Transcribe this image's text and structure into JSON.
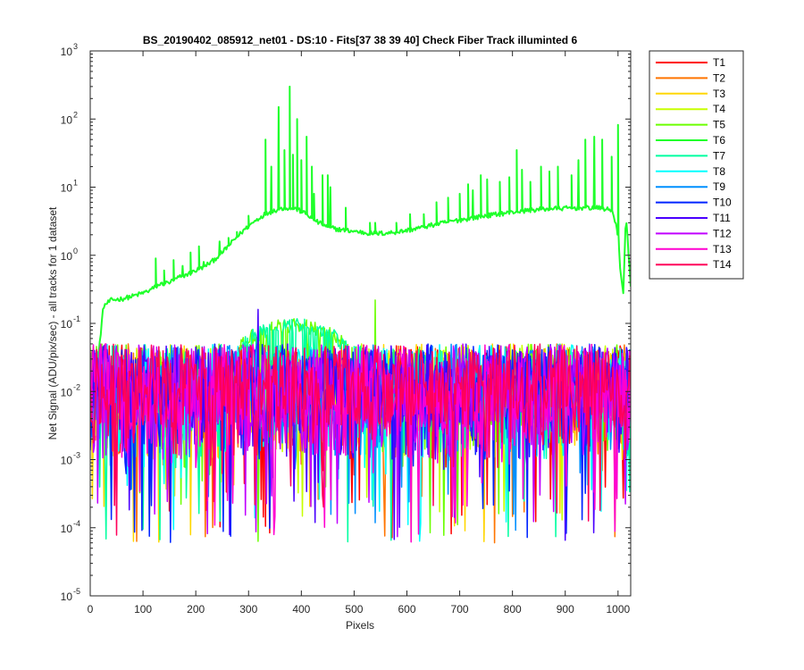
{
  "chart_data": {
    "type": "line",
    "title": "BS_20190402_085912_net01 - DS:10 - Fits[37  38  39  40]   Check Fiber     Track illuminted 6",
    "xlabel": "Pixels",
    "ylabel": "Net Signal (ADU/pix/sec) - all tracks for 1 dataset",
    "xlim": [
      0,
      1024
    ],
    "ylim": [
      1e-05,
      1000
    ],
    "yscale": "log",
    "grid": false,
    "legend_position": "outside-top-right",
    "x_ticks": [
      0,
      100,
      200,
      300,
      400,
      500,
      600,
      700,
      800,
      900,
      1000
    ],
    "y_ticks": [
      {
        "value": 1e-05,
        "base": "10",
        "exp": "-5"
      },
      {
        "value": 0.0001,
        "base": "10",
        "exp": "-4"
      },
      {
        "value": 0.001,
        "base": "10",
        "exp": "-3"
      },
      {
        "value": 0.01,
        "base": "10",
        "exp": "-2"
      },
      {
        "value": 0.1,
        "base": "10",
        "exp": "-1"
      },
      {
        "value": 1,
        "base": "10",
        "exp": "0"
      },
      {
        "value": 10,
        "base": "10",
        "exp": "1"
      },
      {
        "value": 100,
        "base": "10",
        "exp": "2"
      },
      {
        "value": 1000,
        "base": "10",
        "exp": "3"
      }
    ],
    "illuminated_track": {
      "name": "T6",
      "baseline": [
        [
          0,
          0.022
        ],
        [
          15,
          0.03
        ],
        [
          25,
          0.18
        ],
        [
          40,
          0.22
        ],
        [
          60,
          0.23
        ],
        [
          80,
          0.25
        ],
        [
          100,
          0.28
        ],
        [
          110,
          0.3
        ],
        [
          120,
          0.33
        ],
        [
          130,
          0.37
        ],
        [
          150,
          0.4
        ],
        [
          170,
          0.48
        ],
        [
          190,
          0.55
        ],
        [
          210,
          0.65
        ],
        [
          230,
          0.8
        ],
        [
          250,
          1.1
        ],
        [
          270,
          1.6
        ],
        [
          290,
          2.3
        ],
        [
          310,
          3.1
        ],
        [
          330,
          4.0
        ],
        [
          350,
          4.6
        ],
        [
          370,
          5.0
        ],
        [
          390,
          4.8
        ],
        [
          410,
          4.0
        ],
        [
          430,
          3.1
        ],
        [
          450,
          2.6
        ],
        [
          470,
          2.4
        ],
        [
          490,
          2.3
        ],
        [
          510,
          2.2
        ],
        [
          530,
          2.1
        ],
        [
          550,
          2.1
        ],
        [
          570,
          2.15
        ],
        [
          590,
          2.25
        ],
        [
          610,
          2.4
        ],
        [
          630,
          2.6
        ],
        [
          650,
          2.8
        ],
        [
          670,
          3.0
        ],
        [
          690,
          3.2
        ],
        [
          710,
          3.4
        ],
        [
          730,
          3.6
        ],
        [
          750,
          3.8
        ],
        [
          770,
          4.0
        ],
        [
          790,
          4.2
        ],
        [
          810,
          4.4
        ],
        [
          830,
          4.6
        ],
        [
          850,
          4.7
        ],
        [
          870,
          4.8
        ],
        [
          890,
          4.9
        ],
        [
          910,
          4.9
        ],
        [
          930,
          5.0
        ],
        [
          950,
          5.0
        ],
        [
          970,
          4.9
        ],
        [
          990,
          4.5
        ],
        [
          1000,
          2.0
        ],
        [
          1005,
          0.5
        ],
        [
          1010,
          0.3
        ],
        [
          1015,
          4.0
        ],
        [
          1024,
          0.35
        ]
      ],
      "peaks": [
        [
          124,
          0.9
        ],
        [
          140,
          0.6
        ],
        [
          158,
          0.85
        ],
        [
          175,
          0.7
        ],
        [
          190,
          1.1
        ],
        [
          206,
          1.35
        ],
        [
          215,
          0.8
        ],
        [
          245,
          1.6
        ],
        [
          262,
          1.8
        ],
        [
          278,
          2.2
        ],
        [
          300,
          3.8
        ],
        [
          332,
          50
        ],
        [
          343,
          20
        ],
        [
          357,
          150
        ],
        [
          368,
          35
        ],
        [
          378,
          300
        ],
        [
          384,
          30
        ],
        [
          392,
          100
        ],
        [
          400,
          25
        ],
        [
          410,
          55
        ],
        [
          420,
          20
        ],
        [
          424,
          8
        ],
        [
          440,
          15
        ],
        [
          450,
          15
        ],
        [
          455,
          10
        ],
        [
          484,
          5
        ],
        [
          530,
          3
        ],
        [
          540,
          3
        ],
        [
          580,
          3
        ],
        [
          606,
          4
        ],
        [
          632,
          4
        ],
        [
          656,
          6
        ],
        [
          678,
          7
        ],
        [
          700,
          8
        ],
        [
          716,
          11
        ],
        [
          725,
          9
        ],
        [
          740,
          15
        ],
        [
          752,
          13
        ],
        [
          776,
          12
        ],
        [
          794,
          14
        ],
        [
          808,
          35
        ],
        [
          818,
          18
        ],
        [
          834,
          12
        ],
        [
          854,
          20
        ],
        [
          870,
          17
        ],
        [
          886,
          20
        ],
        [
          912,
          15
        ],
        [
          925,
          25
        ],
        [
          938,
          50
        ],
        [
          955,
          55
        ],
        [
          970,
          50
        ],
        [
          988,
          28
        ],
        [
          1000,
          82
        ]
      ],
      "noise_wiggle": 0.08
    },
    "noise_tracks": {
      "typical_range": [
        0.003,
        0.05
      ],
      "deep_dips_range": [
        6e-05,
        0.001
      ],
      "bump": {
        "x_range": [
          280,
          490
        ],
        "peak": 0.12,
        "tracks": [
          "T6",
          "T7",
          "T5"
        ]
      },
      "spikes": [
        [
          318,
          0.16,
          "T11"
        ],
        [
          540,
          0.22,
          "T5"
        ]
      ]
    },
    "series": [
      {
        "name": "T1",
        "color": "#ff0000"
      },
      {
        "name": "T2",
        "color": "#ff7500"
      },
      {
        "name": "T3",
        "color": "#ffd700"
      },
      {
        "name": "T4",
        "color": "#c8ff00"
      },
      {
        "name": "T5",
        "color": "#6cff00"
      },
      {
        "name": "T6",
        "color": "#1eff2a"
      },
      {
        "name": "T7",
        "color": "#00ffa0"
      },
      {
        "name": "T8",
        "color": "#00ffff"
      },
      {
        "name": "T9",
        "color": "#008fff"
      },
      {
        "name": "T10",
        "color": "#0024ff"
      },
      {
        "name": "T11",
        "color": "#4a00ff"
      },
      {
        "name": "T12",
        "color": "#c000ff"
      },
      {
        "name": "T13",
        "color": "#ff00d0"
      },
      {
        "name": "T14",
        "color": "#ff005a"
      }
    ]
  }
}
